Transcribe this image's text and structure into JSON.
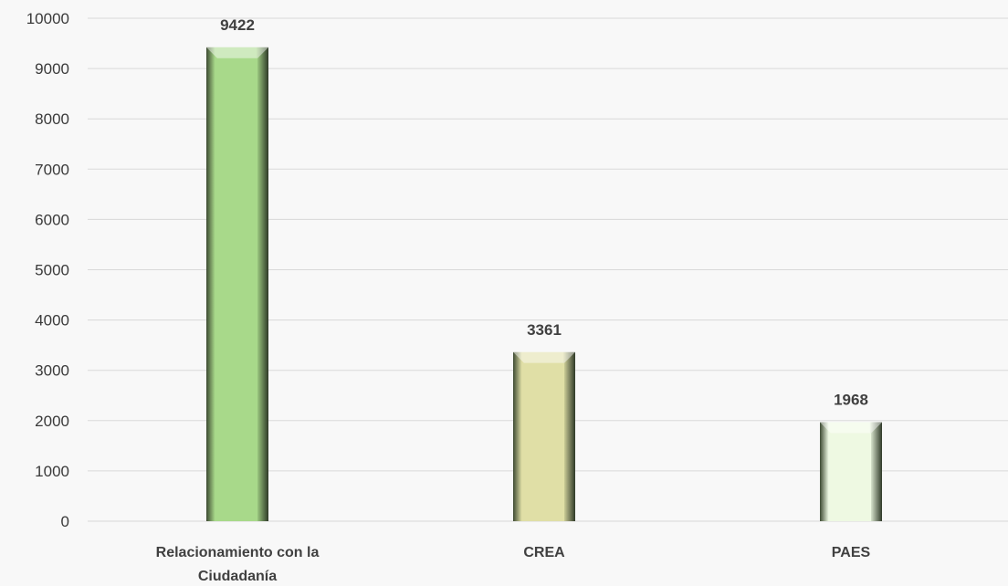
{
  "chart_data": {
    "type": "bar",
    "categories": [
      [
        "Relacionamiento con la",
        "Ciudadanía"
      ],
      [
        "CREA"
      ],
      [
        "PAES"
      ]
    ],
    "values": [
      9422,
      3361,
      1968
    ],
    "data_labels": [
      "9422",
      "3361",
      "1968"
    ],
    "bar_colors": [
      "#a8d98a",
      "#e0dfa6",
      "#eef9e2"
    ],
    "yticks": [
      "0",
      "1000",
      "2000",
      "3000",
      "4000",
      "5000",
      "6000",
      "7000",
      "8000",
      "9000",
      "10000"
    ],
    "ylim": [
      0,
      10000
    ],
    "title": "",
    "xlabel": "",
    "ylabel": "",
    "grid": true,
    "legend": "none"
  },
  "colors": {
    "background": "#f8f8f8",
    "gridline": "#d9d9d9",
    "axis_text": "#3a3a3a",
    "label_text": "#404040"
  }
}
